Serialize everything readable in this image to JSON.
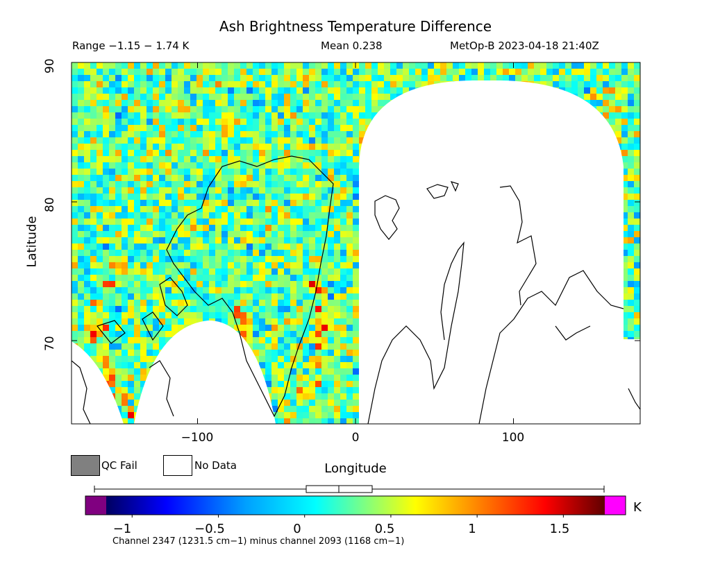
{
  "header": {
    "title": "Ash Brightness Temperature Difference",
    "range_text": "Range −1.15 − 1.74 K",
    "mean_text": "Mean 0.238",
    "satellite_text": "MetOp-B 2023-04-18 21:40Z"
  },
  "legend": {
    "qc_fail_label": "QC Fail",
    "no_data_label": "No Data",
    "qc_fail_color": "#808080",
    "no_data_color": "#ffffff"
  },
  "colorbar": {
    "unit": "K",
    "tick_labels": [
      "−1",
      "−0.5",
      "0",
      "0.5",
      "1",
      "1.5"
    ],
    "tick_values": [
      -1,
      -0.5,
      0,
      0.5,
      1,
      1.5
    ],
    "range": [
      -1.15,
      1.74
    ],
    "under_color": "#800080",
    "over_color": "#ff00ff",
    "boxplot": {
      "min": -1.15,
      "q1": 0.04,
      "median": 0.238,
      "q3": 0.42,
      "max": 1.74
    },
    "caption": "Channel 2347 (1231.5 cm−1) minus channel 2093 (1168 cm−1)"
  },
  "chart_data": {
    "type": "heatmap",
    "title": "Ash Brightness Temperature Difference",
    "xlabel": "Longitude",
    "ylabel": "Latitude",
    "xlim": [
      -180,
      180
    ],
    "ylim": [
      64,
      90
    ],
    "x_ticks": [
      -100,
      0,
      100
    ],
    "x_tick_labels": [
      "−100",
      "0",
      "100"
    ],
    "y_ticks": [
      70,
      80,
      90
    ],
    "y_tick_labels": [
      "70",
      "80",
      "90"
    ],
    "value_range": [
      -1.15,
      1.74
    ],
    "mean": 0.238,
    "units": "K",
    "colormap": [
      "#000080",
      "#0000ff",
      "#00a0ff",
      "#00ffff",
      "#80ff80",
      "#ffff00",
      "#ff8000",
      "#ff0000",
      "#800000"
    ]
  }
}
